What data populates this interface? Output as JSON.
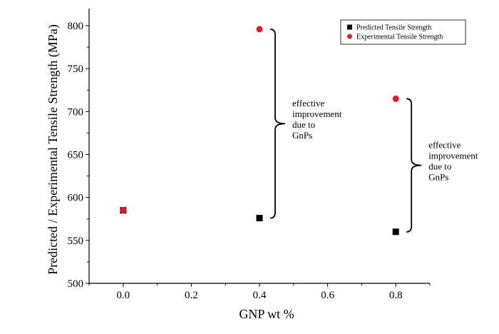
{
  "chart_data": {
    "type": "scatter",
    "xlabel": "GNP wt %",
    "ylabel": "Predicted / Experimental Tensile Strength (MPa)",
    "xlim": [
      -0.1,
      0.9
    ],
    "ylim": [
      500,
      820
    ],
    "xticks": [
      "0.0",
      "0.2",
      "0.4",
      "0.6",
      "0.8"
    ],
    "yticks": [
      "500",
      "550",
      "600",
      "650",
      "700",
      "750",
      "800"
    ],
    "series": [
      {
        "name": "Predicted Tensile Strength",
        "marker": "square",
        "color": "#000000",
        "x": [
          0.0,
          0.4,
          0.8
        ],
        "y": [
          585,
          576,
          560
        ]
      },
      {
        "name": "Experimental Tensile Strength",
        "marker": "circle",
        "color": "#e8191d",
        "x": [
          0.0,
          0.4,
          0.8
        ],
        "y": [
          585,
          796,
          715
        ]
      }
    ],
    "legend_position": "top-right",
    "annotations": [
      {
        "lines": [
          "effective",
          "improvement",
          "due to",
          "GnPs"
        ],
        "x": 0.4,
        "y_range": [
          576,
          796
        ]
      },
      {
        "lines": [
          "effective",
          "improvement",
          "due to",
          "GnPs"
        ],
        "x": 0.8,
        "y_range": [
          560,
          715
        ]
      }
    ]
  }
}
